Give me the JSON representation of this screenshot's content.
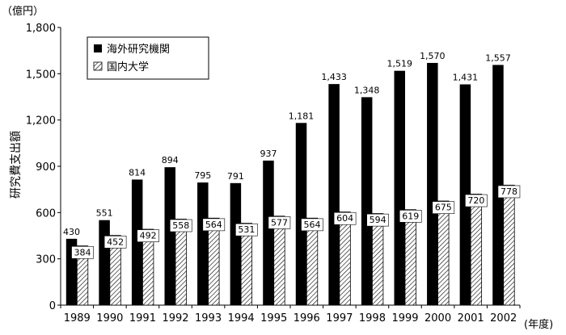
{
  "chart_data": {
    "type": "bar",
    "unit_label": "（億円）",
    "ylabel": "研究費支出額",
    "x_unit_label": "(年度)",
    "ylim": [
      0,
      1800
    ],
    "yticks": [
      "0",
      "300",
      "600",
      "900",
      "1,200",
      "1,500",
      "1,800"
    ],
    "ytick_values": [
      0,
      300,
      600,
      900,
      1200,
      1500,
      1800
    ],
    "categories": [
      "1989",
      "1990",
      "1991",
      "1992",
      "1993",
      "1994",
      "1995",
      "1996",
      "1997",
      "1998",
      "1999",
      "2000",
      "2001",
      "2002"
    ],
    "series": [
      {
        "name": "海外研究機関",
        "values": [
          430,
          551,
          814,
          894,
          795,
          791,
          937,
          1181,
          1433,
          1348,
          1519,
          1570,
          1431,
          1557
        ],
        "labels": [
          "430",
          "551",
          "814",
          "894",
          "795",
          "791",
          "937",
          "1,181",
          "1,433",
          "1,348",
          "1,519",
          "1,570",
          "1,431",
          "1,557"
        ],
        "fill": "solid-black"
      },
      {
        "name": "国内大学",
        "values": [
          384,
          452,
          492,
          558,
          564,
          531,
          577,
          564,
          604,
          594,
          619,
          675,
          720,
          778
        ],
        "labels": [
          "384",
          "452",
          "492",
          "558",
          "564",
          "531",
          "577",
          "564",
          "604",
          "594",
          "619",
          "675",
          "720",
          "778"
        ],
        "fill": "diagonal-hatch"
      }
    ],
    "legend_position": "top-left",
    "grid": false
  }
}
